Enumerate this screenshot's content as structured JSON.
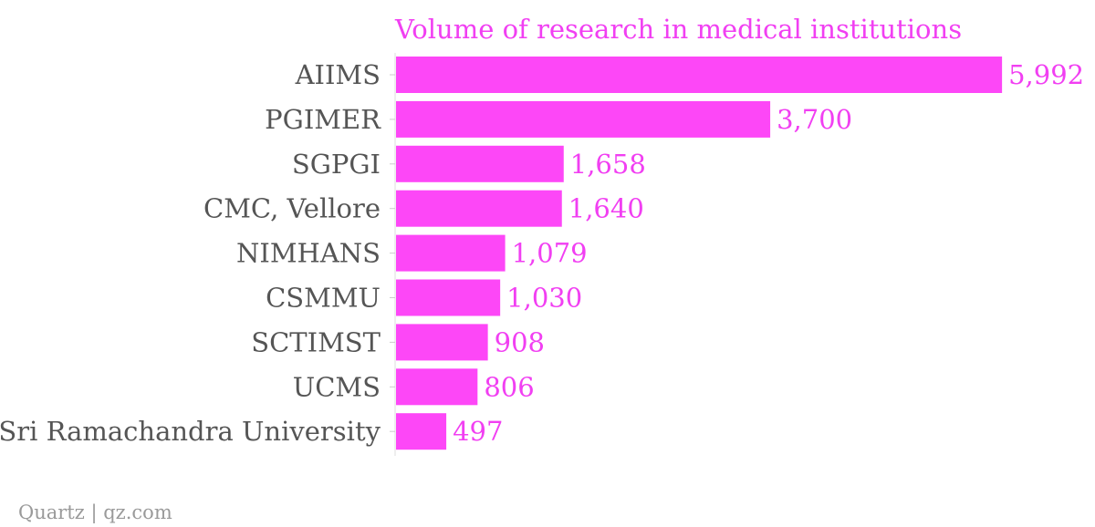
{
  "chart_data": {
    "type": "bar",
    "orientation": "horizontal",
    "title": "Volume of research in medical institutions",
    "xlabel": "",
    "ylabel": "",
    "categories": [
      "AIIMS",
      "PGIMER",
      "SGPGI",
      "CMC, Vellore",
      "NIMHANS",
      "CSMMU",
      "SCTIMST",
      "UCMS",
      "Sri Ramachandra University"
    ],
    "values": [
      5992,
      3700,
      1658,
      1640,
      1079,
      1030,
      908,
      806,
      497
    ],
    "value_labels": [
      "5,992",
      "3,700",
      "1,658",
      "1,640",
      "1,079",
      "1,030",
      "908",
      "806",
      "497"
    ],
    "xlim": [
      0,
      6000
    ],
    "grid": false,
    "legend": "none",
    "bar_color": "#fd47f7",
    "title_color": "#f13ff2",
    "value_label_color": "#f13ff2",
    "category_label_color": "#555555"
  },
  "footer": {
    "source": "Quartz | qz.com"
  }
}
